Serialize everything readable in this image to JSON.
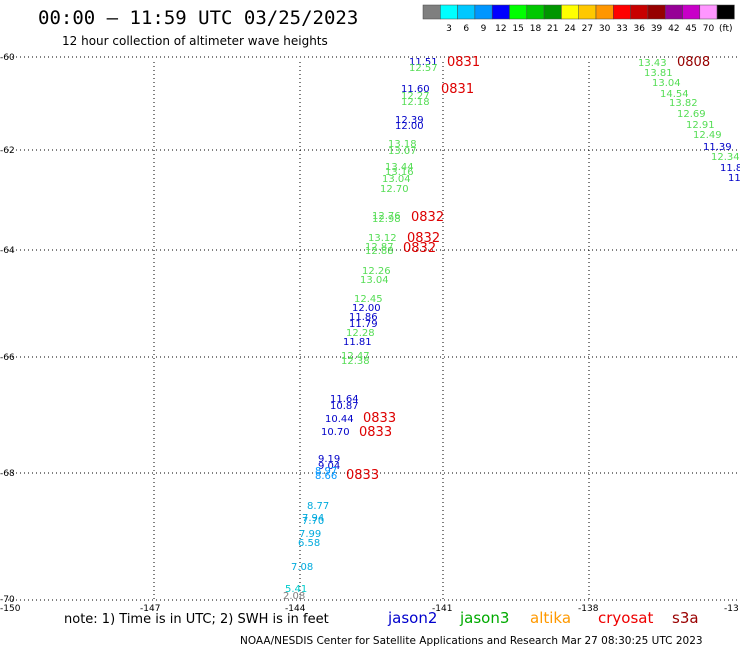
{
  "header": {
    "title": "00:00 – 11:59 UTC 03/25/2023",
    "subtitle": "12 hour collection of altimeter wave heights"
  },
  "legend": {
    "unit": "(ft)",
    "bins": [
      {
        "label": "",
        "color": "#7f7f7f"
      },
      {
        "label": "3",
        "color": "#00ffff"
      },
      {
        "label": "6",
        "color": "#00c8ff"
      },
      {
        "label": "9",
        "color": "#0096ff"
      },
      {
        "label": "12",
        "color": "#0000ff"
      },
      {
        "label": "15",
        "color": "#00ff00"
      },
      {
        "label": "18",
        "color": "#00c800"
      },
      {
        "label": "21",
        "color": "#009600"
      },
      {
        "label": "24",
        "color": "#ffff00"
      },
      {
        "label": "27",
        "color": "#ffc800"
      },
      {
        "label": "30",
        "color": "#ff9600"
      },
      {
        "label": "33",
        "color": "#ff0000"
      },
      {
        "label": "36",
        "color": "#c80000"
      },
      {
        "label": "39",
        "color": "#960000"
      },
      {
        "label": "42",
        "color": "#960096"
      },
      {
        "label": "45",
        "color": "#c800c8"
      },
      {
        "label": "70",
        "color": "#ff96ff"
      },
      {
        "label": "",
        "color": "#000000"
      }
    ]
  },
  "axes": {
    "lon_ticks": [
      "-150",
      "-147",
      "-144",
      "-141",
      "-138",
      "-13"
    ],
    "lat_ticks": [
      "-60",
      "-62",
      "-64",
      "-66",
      "-68",
      "-70"
    ]
  },
  "observations": [
    {
      "text": "11.51",
      "color": "#0000c8"
    },
    {
      "text": "12.57",
      "color": "#55dd55"
    },
    {
      "text": "0831",
      "color": "#dd0000"
    },
    {
      "text": "11.60",
      "color": "#0000c8"
    },
    {
      "text": "12.27",
      "color": "#55dd55"
    },
    {
      "text": "12.18",
      "color": "#55dd55"
    },
    {
      "text": "0831",
      "color": "#dd0000"
    },
    {
      "text": "12.39",
      "color": "#0000c8"
    },
    {
      "text": "12.00",
      "color": "#0000c8"
    },
    {
      "text": "13.18",
      "color": "#55dd55"
    },
    {
      "text": "13.07",
      "color": "#55dd55"
    },
    {
      "text": "13.44",
      "color": "#55dd55"
    },
    {
      "text": "13.16",
      "color": "#55dd55"
    },
    {
      "text": "13.04",
      "color": "#55dd55"
    },
    {
      "text": "12.70",
      "color": "#55dd55"
    },
    {
      "text": "12.76",
      "color": "#55dd55"
    },
    {
      "text": "12.98",
      "color": "#55dd55"
    },
    {
      "text": "0832",
      "color": "#dd0000"
    },
    {
      "text": "13.12",
      "color": "#55dd55"
    },
    {
      "text": "0832",
      "color": "#dd0000"
    },
    {
      "text": "12.87",
      "color": "#55dd55"
    },
    {
      "text": "12.88",
      "color": "#55dd55"
    },
    {
      "text": "0832",
      "color": "#dd0000"
    },
    {
      "text": "12.26",
      "color": "#55dd55"
    },
    {
      "text": "13.04",
      "color": "#55dd55"
    },
    {
      "text": "12.45",
      "color": "#55dd55"
    },
    {
      "text": "12.00",
      "color": "#0000c8"
    },
    {
      "text": "11.86",
      "color": "#0000c8"
    },
    {
      "text": "11.79",
      "color": "#0000c8"
    },
    {
      "text": "12.28",
      "color": "#55dd55"
    },
    {
      "text": "11.81",
      "color": "#0000c8"
    },
    {
      "text": "12.47",
      "color": "#55dd55"
    },
    {
      "text": "12.38",
      "color": "#55dd55"
    },
    {
      "text": "11.64",
      "color": "#0000c8"
    },
    {
      "text": "10.87",
      "color": "#0000c8"
    },
    {
      "text": "10.44",
      "color": "#0000c8"
    },
    {
      "text": "0833",
      "color": "#dd0000"
    },
    {
      "text": "10.70",
      "color": "#0000c8"
    },
    {
      "text": "0833",
      "color": "#dd0000"
    },
    {
      "text": "9.19",
      "color": "#0000c8"
    },
    {
      "text": "9.04",
      "color": "#0000c8"
    },
    {
      "text": "8.97",
      "color": "#0096ff"
    },
    {
      "text": "8.66",
      "color": "#0096ff"
    },
    {
      "text": "0833",
      "color": "#dd0000"
    },
    {
      "text": "8.77",
      "color": "#00aadd"
    },
    {
      "text": "7.94",
      "color": "#00aadd"
    },
    {
      "text": "7.70",
      "color": "#00aadd"
    },
    {
      "text": "7.99",
      "color": "#00aadd"
    },
    {
      "text": "6.58",
      "color": "#00aadd"
    },
    {
      "text": "7.08",
      "color": "#00aadd"
    },
    {
      "text": "5.41",
      "color": "#00cccc"
    },
    {
      "text": "2.08",
      "color": "#7f7f7f"
    },
    {
      "text": "13.43",
      "color": "#55dd55"
    },
    {
      "text": "0808",
      "color": "#960000"
    },
    {
      "text": "13.81",
      "color": "#55dd55"
    },
    {
      "text": "13.04",
      "color": "#55dd55"
    },
    {
      "text": "14.54",
      "color": "#55dd55"
    },
    {
      "text": "13.82",
      "color": "#55dd55"
    },
    {
      "text": "12.69",
      "color": "#55dd55"
    },
    {
      "text": "12.91",
      "color": "#55dd55"
    },
    {
      "text": "12.49",
      "color": "#55dd55"
    },
    {
      "text": "11.39",
      "color": "#0000c8"
    },
    {
      "text": "12.34",
      "color": "#55dd55"
    },
    {
      "text": "11.8",
      "color": "#0000c8"
    },
    {
      "text": "11",
      "color": "#0000c8"
    }
  ],
  "footer": {
    "note": "note: 1) Time is in UTC; 2) SWH is in feet",
    "missions": [
      {
        "name": "jason2",
        "color": "#0000cc"
      },
      {
        "name": "jason3",
        "color": "#00aa00"
      },
      {
        "name": "altika",
        "color": "#ff9900"
      },
      {
        "name": "cryosat",
        "color": "#ee0000"
      },
      {
        "name": "s3a",
        "color": "#990000"
      }
    ],
    "credit": "NOAA/NESDIS Center for Satellite Applications and Research    Mar 27 08:30:25 UTC 2023"
  }
}
